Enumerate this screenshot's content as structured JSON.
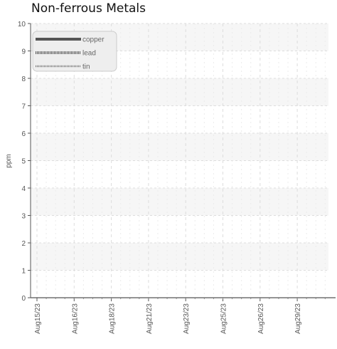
{
  "chart_data": {
    "type": "line",
    "title": "Non-ferrous Metals",
    "ylabel": "ppm",
    "xlabel": "",
    "ylim": [
      0,
      10
    ],
    "yticks": [
      "0",
      "1",
      "2",
      "3",
      "4",
      "5",
      "6",
      "7",
      "8",
      "9",
      "10"
    ],
    "x_tick_labels": [
      "Aug15/23",
      "Aug16/23",
      "Aug18/23",
      "Aug21/23",
      "Aug23/23",
      "Aug25/23",
      "Aug26/23",
      "Aug29/23"
    ],
    "grid": true,
    "legend_position": "top-left",
    "series": [
      {
        "name": "copper",
        "style": "solid",
        "color": "#555555",
        "values": []
      },
      {
        "name": "lead",
        "style": "dotted",
        "color": "#555555",
        "values": []
      },
      {
        "name": "tin",
        "style": "dotted-thin",
        "color": "#777777",
        "values": []
      }
    ]
  }
}
